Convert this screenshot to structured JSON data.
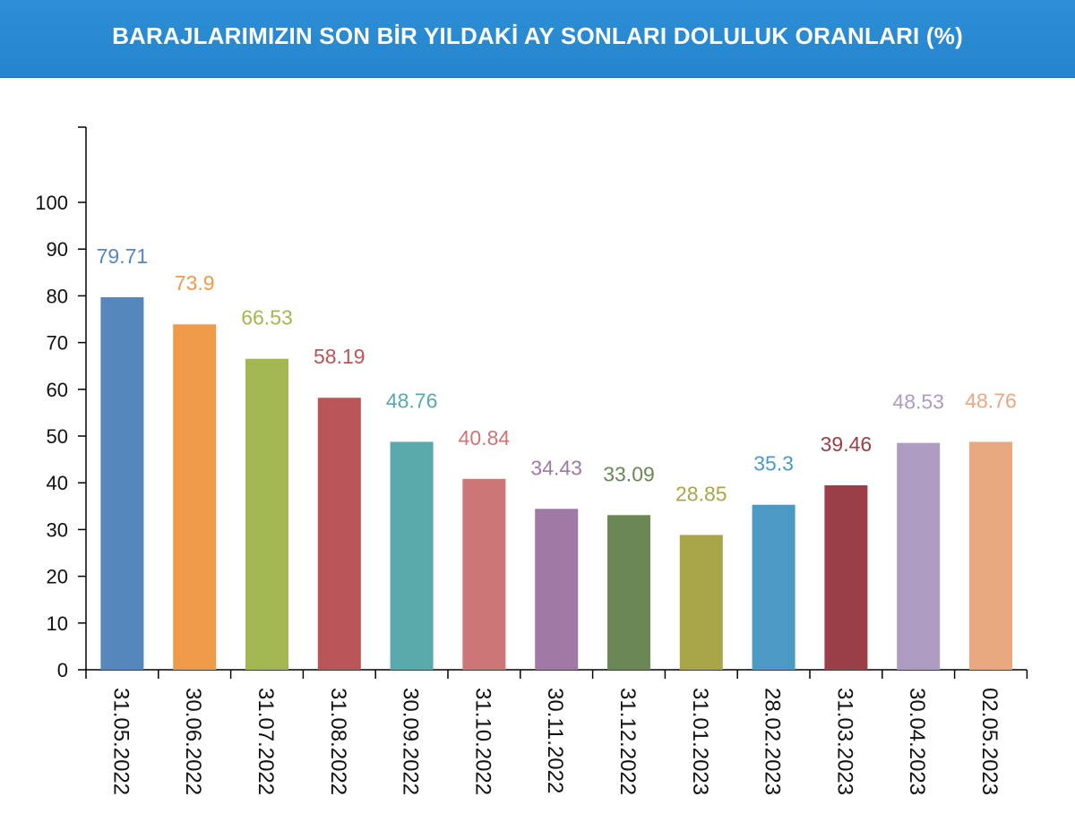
{
  "header": {
    "title": "BARAJLARIMIZIN SON BİR YILDAKİ AY SONLARI DOLULUK ORANLARI (%)",
    "background_color": "#2a8ad2"
  },
  "chart_data": {
    "type": "bar",
    "title": "BARAJLARIMIZIN SON BİR YILDAKİ AY SONLARI DOLULUK ORANLARI (%)",
    "xlabel": "",
    "ylabel": "",
    "ylim": [
      0,
      115
    ],
    "yticks": [
      0,
      10,
      20,
      30,
      40,
      50,
      60,
      70,
      80,
      90,
      100
    ],
    "grid": false,
    "categories": [
      "31.05.2022",
      "30.06.2022",
      "31.07.2022",
      "31.08.2022",
      "30.09.2022",
      "31.10.2022",
      "30.11.2022",
      "31.12.2022",
      "31.01.2023",
      "28.02.2023",
      "31.03.2023",
      "30.04.2023",
      "02.05.2023"
    ],
    "values": [
      79.71,
      73.9,
      66.53,
      58.19,
      48.76,
      40.84,
      34.43,
      33.09,
      28.85,
      35.3,
      39.46,
      48.53,
      48.76
    ],
    "value_labels": [
      "79.71",
      "73.9",
      "66.53",
      "58.19",
      "48.76",
      "40.84",
      "34.43",
      "33.09",
      "28.85",
      "35.3",
      "39.46",
      "48.53",
      "48.76"
    ],
    "colors": [
      "#5587bd",
      "#ef9a48",
      "#a2b652",
      "#b95559",
      "#59a8aa",
      "#cc7677",
      "#a07aa4",
      "#6b8755",
      "#a9a64a",
      "#4a9ac5",
      "#9a3f47",
      "#ae9bc2",
      "#e8a880"
    ]
  }
}
